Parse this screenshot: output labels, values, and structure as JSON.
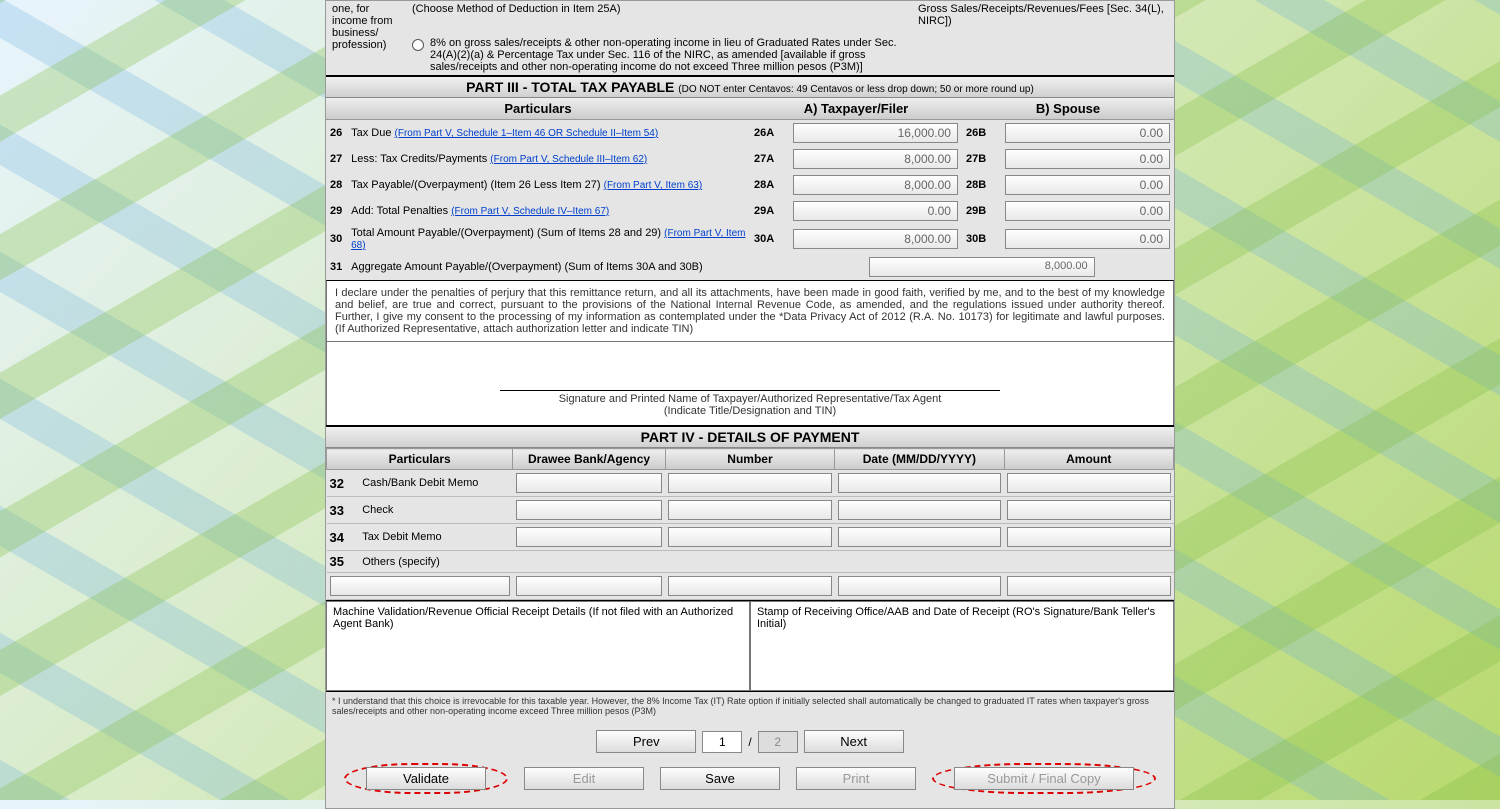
{
  "top": {
    "left_text": "one, for income from business/ profession)",
    "choose_text": "(Choose Method of Deduction in Item 25A)",
    "right_text": "Gross Sales/Receipts/Revenues/Fees [Sec. 34(L), NIRC])",
    "radio_text": "8% on gross sales/receipts & other non-operating income in lieu of Graduated Rates under Sec. 24(A)(2)(a) & Percentage Tax under Sec. 116 of the NIRC, as amended [available if gross sales/receipts and other non-operating income do not exceed Three million pesos (P3M)]"
  },
  "part3": {
    "header": "PART III - TOTAL TAX PAYABLE",
    "header_note": "(DO NOT enter Centavos: 49 Centavos or less drop down; 50 or more round up)",
    "col_particulars": "Particulars",
    "col_a": "A) Taxpayer/Filer",
    "col_b": "B) Spouse",
    "rows": [
      {
        "n": "26",
        "label": "Tax Due",
        "link": "(From Part V, Schedule 1–Item 46 OR Schedule II–Item 54)",
        "codeA": "26A",
        "valA": "16,000.00",
        "codeB": "26B",
        "valB": "0.00"
      },
      {
        "n": "27",
        "label": "Less: Tax Credits/Payments",
        "link": "(From Part V, Schedule III–Item 62)",
        "codeA": "27A",
        "valA": "8,000.00",
        "codeB": "27B",
        "valB": "0.00"
      },
      {
        "n": "28",
        "label": "Tax Payable/(Overpayment) (Item 26 Less Item 27)",
        "link": "(From Part V, Item 63)",
        "codeA": "28A",
        "valA": "8,000.00",
        "codeB": "28B",
        "valB": "0.00"
      },
      {
        "n": "29",
        "label": "Add: Total Penalties",
        "link": "(From Part V, Schedule IV–Item 67)",
        "codeA": "29A",
        "valA": "0.00",
        "codeB": "29B",
        "valB": "0.00"
      },
      {
        "n": "30",
        "label": "Total Amount Payable/(Overpayment) (Sum of Items 28 and 29)",
        "link": "(From Part V, Item 68)",
        "codeA": "30A",
        "valA": "8,000.00",
        "codeB": "30B",
        "valB": "0.00"
      }
    ],
    "agg_n": "31",
    "agg_label": "Aggregate Amount Payable/(Overpayment) (Sum of Items 30A and 30B)",
    "agg_val": "8,000.00"
  },
  "declaration": "    I declare under the penalties of perjury that this remittance return, and all its attachments, have been made in good faith, verified by me, and to the best of my knowledge and belief, are true and correct, pursuant to the provisions of the National Internal Revenue Code, as amended, and the regulations issued under authority thereof. Further, I give my consent to the processing of my information as contemplated under the *Data Privacy Act of 2012 (R.A. No. 10173) for legitimate and lawful purposes. (If Authorized Representative, attach authorization letter and indicate TIN)",
  "sig_line1": "Signature and Printed Name of Taxpayer/Authorized Representative/Tax Agent",
  "sig_line2": "(Indicate Title/Designation and TIN)",
  "part4": {
    "header": "PART IV - DETAILS OF PAYMENT",
    "cols": [
      "Particulars",
      "Drawee Bank/Agency",
      "Number",
      "Date (MM/DD/YYYY)",
      "Amount"
    ],
    "rows": [
      {
        "n": "32",
        "label": "Cash/Bank Debit Memo"
      },
      {
        "n": "33",
        "label": "Check"
      },
      {
        "n": "34",
        "label": "Tax Debit Memo"
      },
      {
        "n": "35",
        "label": "Others (specify)"
      }
    ],
    "box_left": "Machine Validation/Revenue Official Receipt Details (If not filed with an Authorized Agent Bank)",
    "box_right": "Stamp of Receiving Office/AAB and Date of Receipt (RO's Signature/Bank Teller's Initial)"
  },
  "footnote": "* I understand that this choice is irrevocable for this taxable year. However, the 8% Income Tax (IT) Rate option if initially selected shall automatically be changed to graduated IT rates when taxpayer's gross sales/receipts and other non-operating income exceed Three million pesos (P3M)",
  "nav": {
    "prev": "Prev",
    "next": "Next",
    "page_cur": "1",
    "page_sep": "/",
    "page_total": "2"
  },
  "actions": {
    "validate": "Validate",
    "edit": "Edit",
    "save": "Save",
    "print": "Print",
    "submit": "Submit / Final Copy"
  }
}
